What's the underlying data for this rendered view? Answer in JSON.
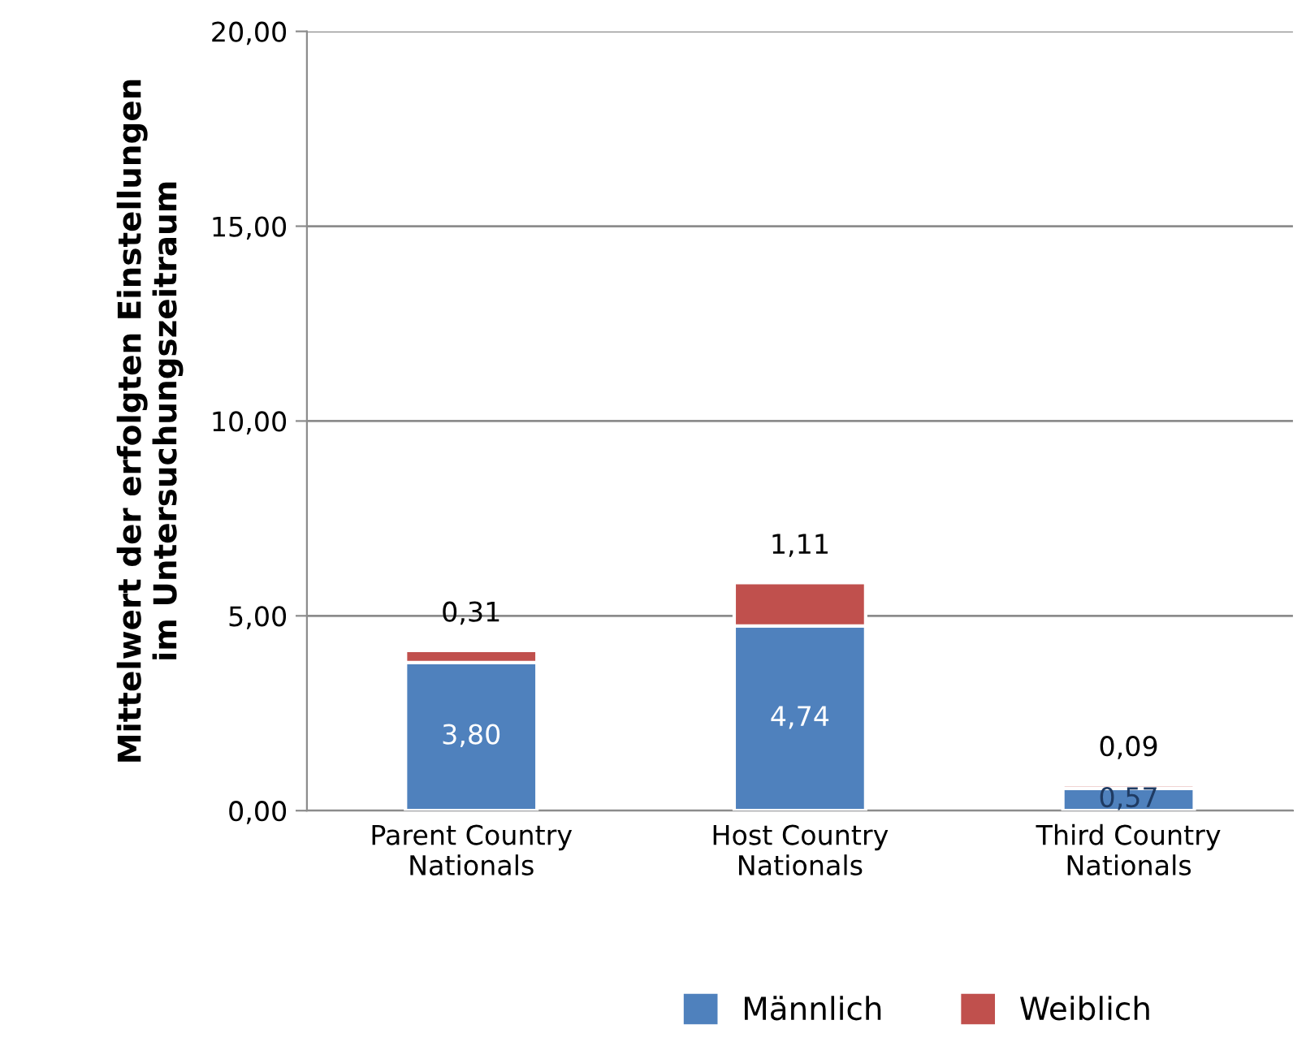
{
  "chart_data": {
    "type": "bar",
    "stacked": true,
    "ylabel": "Mittelwert der erfolgten Einstellungen\nim Untersuchungszeitraum",
    "categories": [
      "Parent Country\nNationals",
      "Host Country\nNationals",
      "Third Country\nNationals"
    ],
    "series": [
      {
        "name": "Männlich",
        "color": "#4f81bd",
        "values": [
          3.8,
          4.74,
          0.57
        ],
        "value_labels": [
          "3,80",
          "4,74",
          "0,57"
        ]
      },
      {
        "name": "Weiblich",
        "color": "#c0504d",
        "values": [
          0.31,
          1.11,
          0.09
        ],
        "value_labels": [
          "0,31",
          "1,11",
          "0,09"
        ]
      }
    ],
    "ylim": [
      0,
      20
    ],
    "yticks": [
      {
        "value": 0,
        "label": "0,00"
      },
      {
        "value": 5,
        "label": "5,00"
      },
      {
        "value": 10,
        "label": "10,00"
      },
      {
        "value": 15,
        "label": "15,00"
      },
      {
        "value": 20,
        "label": "20,00"
      }
    ],
    "grid": "y",
    "legend": "bottom"
  }
}
